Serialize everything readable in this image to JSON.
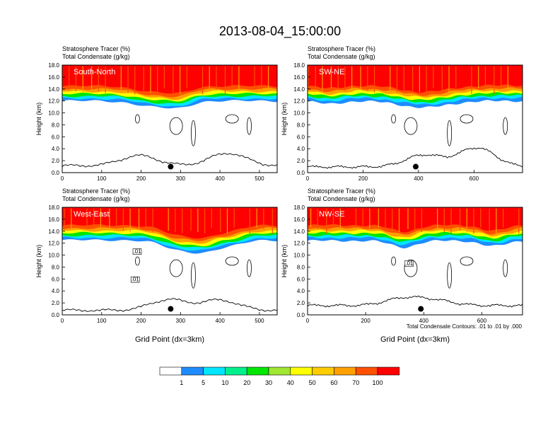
{
  "chart_data": {
    "type": "heatmap",
    "title": "2013-08-04_15:00:00",
    "fill_variable": "Stratosphere Tracer   (%)",
    "contour_variable": "Total Condensate   (g/kg)",
    "ylabel": "Height (km)",
    "xlabel": "Grid Point (dx=3km)",
    "ylim": [
      0,
      18
    ],
    "y_ticks": [
      "0.0",
      "2.0",
      "4.0",
      "6.0",
      "8.0",
      "10.0",
      "12.0",
      "14.0",
      "16.0",
      "18.0"
    ],
    "contour_note": "Total Condensate Contours: .01 to .01 by .000",
    "contour_label": ".01",
    "colorbar": {
      "levels": [
        "1",
        "5",
        "10",
        "20",
        "30",
        "40",
        "50",
        "60",
        "70",
        "100"
      ],
      "colors": [
        "#ffffff",
        "#1e8cff",
        "#00e6ff",
        "#00f08c",
        "#00e600",
        "#a0e632",
        "#ffff00",
        "#ffcc00",
        "#ffa000",
        "#ff5000",
        "#ff0000"
      ]
    },
    "panels": [
      {
        "name": "South-North",
        "xmax": 545,
        "x_ticks": [
          0,
          100,
          200,
          300,
          400,
          500
        ],
        "marker_x": 275,
        "layers": {
          "red": 14.5,
          "ored": 14.0,
          "orange": 13.6,
          "yellow": 13.2,
          "green": 12.8,
          "cyan": 12.4,
          "blue": 12.0
        },
        "dips": [
          {
            "c": 240,
            "w": 70,
            "d": 1.0
          },
          {
            "c": 300,
            "w": 40,
            "d": 0.7
          }
        ],
        "terrain_base": 1.0,
        "terrain_peaks": [
          {
            "x": 195,
            "h": 2.7
          },
          {
            "x": 420,
            "h": 3.1
          }
        ]
      },
      {
        "name": "SW-NE",
        "xmax": 775,
        "x_ticks": [
          0,
          200,
          400,
          600
        ],
        "marker_x": 390,
        "layers": {
          "red": 14.6,
          "ored": 14.1,
          "orange": 13.7,
          "yellow": 13.3,
          "green": 12.9,
          "cyan": 12.5,
          "blue": 12.0
        },
        "dips": [
          {
            "c": 420,
            "w": 120,
            "d": 1.1
          },
          {
            "c": 80,
            "w": 60,
            "d": 0.5
          }
        ],
        "terrain_base": 0.8,
        "terrain_peaks": [
          {
            "x": 420,
            "h": 2.8
          },
          {
            "x": 610,
            "h": 4.0
          }
        ]
      },
      {
        "name": "West-East",
        "xmax": 545,
        "x_ticks": [
          0,
          100,
          200,
          300,
          400,
          500
        ],
        "marker_x": 275,
        "layers": {
          "red": 15.0,
          "ored": 14.5,
          "orange": 14.1,
          "yellow": 13.7,
          "green": 13.3,
          "cyan": 12.9,
          "blue": 12.5
        },
        "dips": [
          {
            "c": 300,
            "w": 60,
            "d": 1.7
          },
          {
            "c": 360,
            "w": 40,
            "d": 1.2
          },
          {
            "c": 420,
            "w": 50,
            "d": 1.0
          }
        ],
        "terrain_base": 0.6,
        "terrain_peaks": [
          {
            "x": 270,
            "h": 2.4
          },
          {
            "x": 400,
            "h": 2.3
          }
        ]
      },
      {
        "name": "NW-SE",
        "xmax": 740,
        "x_ticks": [
          0,
          200,
          400,
          600
        ],
        "marker_x": 390,
        "layers": {
          "red": 15.0,
          "ored": 14.5,
          "orange": 14.1,
          "yellow": 13.7,
          "green": 13.3,
          "cyan": 12.9,
          "blue": 12.4
        },
        "dips": [
          {
            "c": 330,
            "w": 60,
            "d": 1.1
          },
          {
            "c": 640,
            "w": 60,
            "d": 0.9
          }
        ],
        "terrain_base": 1.4,
        "terrain_peaks": [
          {
            "x": 330,
            "h": 2.6
          },
          {
            "x": 440,
            "h": 2.2
          }
        ]
      }
    ]
  }
}
